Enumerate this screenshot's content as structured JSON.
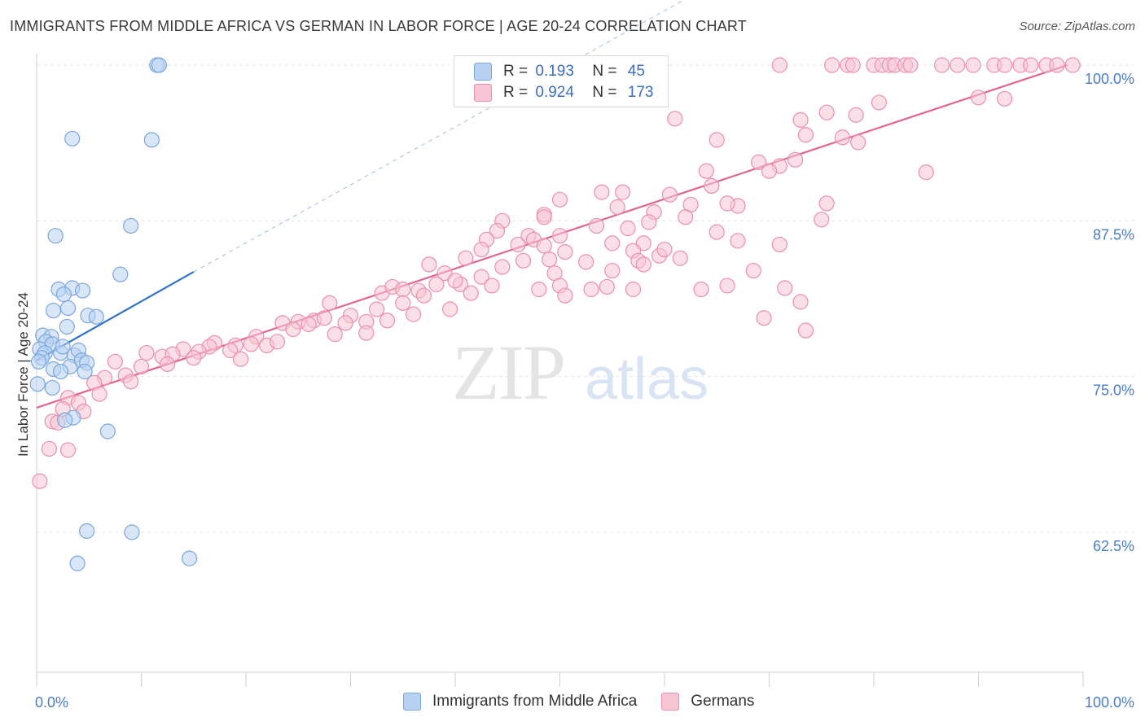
{
  "title": "IMMIGRANTS FROM MIDDLE AFRICA VS GERMAN IN LABOR FORCE | AGE 20-24 CORRELATION CHART",
  "source": "Source: ZipAtlas.com",
  "watermark": {
    "zip": "ZIP",
    "atlas": "atlas"
  },
  "legend": {
    "rows": [
      {
        "r_label": "R =",
        "r_value": "0.193",
        "n_label": "N =",
        "n_value": "45"
      },
      {
        "r_label": "R =",
        "r_value": "0.924",
        "n_label": "N =",
        "n_value": "173"
      }
    ]
  },
  "bottom_legend": [
    "Immigrants from Middle Africa",
    "Germans"
  ],
  "colors": {
    "blue_fill": "#b8d1f2",
    "blue_stroke": "#7aa6de",
    "blue_line": "#2f72c9",
    "pink_fill": "#f7c5d4",
    "pink_stroke": "#ea8fad",
    "pink_line": "#e0668f",
    "axis_label": "#4a7cc9",
    "grid": "#e3e3e3"
  },
  "chart_data": {
    "type": "scatter",
    "title": "IMMIGRANTS FROM MIDDLE AFRICA VS GERMAN IN LABOR FORCE | AGE 20-24 CORRELATION CHART",
    "xlabel": "",
    "ylabel": "In Labor Force | Age 20-24",
    "xlim": [
      0,
      100
    ],
    "ylim": [
      50,
      102
    ],
    "x_tick_labels": [
      "0.0%",
      "100.0%"
    ],
    "y_ticks": [
      62.5,
      75.0,
      87.5,
      100.0
    ],
    "y_tick_labels": [
      "62.5%",
      "75.0%",
      "87.5%",
      "100.0%"
    ],
    "grid": true,
    "series": [
      {
        "name": "Immigrants from Middle Africa",
        "color": "#7aa6de",
        "trend": {
          "x": [
            0,
            15
          ],
          "y": [
            76.3,
            83.4
          ],
          "dashed_to": [
            100,
            123
          ]
        },
        "points": [
          [
            11.5,
            100
          ],
          [
            11.7,
            100
          ],
          [
            3.4,
            94.1
          ],
          [
            11,
            94
          ],
          [
            1.8,
            86.3
          ],
          [
            9.0,
            87.1
          ],
          [
            8.0,
            83.2
          ],
          [
            2.1,
            82.0
          ],
          [
            3.4,
            82.1
          ],
          [
            4.4,
            81.9
          ],
          [
            2.6,
            81.6
          ],
          [
            1.6,
            80.3
          ],
          [
            3.0,
            80.5
          ],
          [
            4.9,
            79.9
          ],
          [
            5.7,
            79.8
          ],
          [
            2.9,
            79.0
          ],
          [
            0.6,
            78.3
          ],
          [
            1.4,
            78.2
          ],
          [
            0.9,
            77.8
          ],
          [
            1.5,
            77.6
          ],
          [
            0.3,
            77.2
          ],
          [
            0.8,
            76.9
          ],
          [
            2.3,
            76.9
          ],
          [
            3.6,
            76.7
          ],
          [
            4.0,
            77.1
          ],
          [
            2.5,
            77.4
          ],
          [
            0.5,
            76.5
          ],
          [
            0.2,
            76.2
          ],
          [
            3.2,
            75.8
          ],
          [
            4.3,
            76.3
          ],
          [
            4.8,
            76.1
          ],
          [
            1.6,
            75.6
          ],
          [
            2.3,
            75.4
          ],
          [
            4.6,
            75.4
          ],
          [
            0.1,
            74.4
          ],
          [
            1.5,
            74.1
          ],
          [
            3.5,
            71.7
          ],
          [
            2.7,
            71.5
          ],
          [
            6.8,
            70.6
          ],
          [
            4.8,
            62.6
          ],
          [
            9.1,
            62.5
          ],
          [
            3.9,
            60.0
          ],
          [
            14.6,
            60.4
          ]
        ]
      },
      {
        "name": "Germans",
        "color": "#ea8fad",
        "trend": {
          "x": [
            0,
            98.5
          ],
          "y": [
            72.5,
            100
          ]
        },
        "points": [
          [
            71,
            100
          ],
          [
            76,
            100
          ],
          [
            77.5,
            100
          ],
          [
            78,
            100
          ],
          [
            80,
            100
          ],
          [
            80.8,
            100
          ],
          [
            81.5,
            100
          ],
          [
            82,
            100
          ],
          [
            83,
            100
          ],
          [
            83.5,
            100
          ],
          [
            86.5,
            100
          ],
          [
            88,
            100
          ],
          [
            89.5,
            100
          ],
          [
            91.5,
            100
          ],
          [
            92.5,
            100
          ],
          [
            94,
            100
          ],
          [
            95,
            100
          ],
          [
            96.5,
            100
          ],
          [
            97.5,
            100
          ],
          [
            99,
            100
          ],
          [
            90,
            97.4
          ],
          [
            92.5,
            97.3
          ],
          [
            80.5,
            97.0
          ],
          [
            75.5,
            96.2
          ],
          [
            78.3,
            96.0
          ],
          [
            73,
            95.6
          ],
          [
            61,
            95.7
          ],
          [
            73.5,
            94.4
          ],
          [
            77,
            94.2
          ],
          [
            78.5,
            93.8
          ],
          [
            65,
            94.0
          ],
          [
            69,
            92.2
          ],
          [
            71,
            91.9
          ],
          [
            72.5,
            92.4
          ],
          [
            70,
            91.5
          ],
          [
            85,
            91.4
          ],
          [
            64,
            91.5
          ],
          [
            64.5,
            90.3
          ],
          [
            60.5,
            89.6
          ],
          [
            56,
            89.8
          ],
          [
            54,
            89.8
          ],
          [
            50,
            89.2
          ],
          [
            55.5,
            88.6
          ],
          [
            62.5,
            88.8
          ],
          [
            75.5,
            88.9
          ],
          [
            67,
            88.7
          ],
          [
            59,
            88.2
          ],
          [
            62,
            87.8
          ],
          [
            48.5,
            88.0
          ],
          [
            48.5,
            87.8
          ],
          [
            75,
            87.6
          ],
          [
            53.5,
            87.1
          ],
          [
            56.5,
            86.9
          ],
          [
            58.5,
            87.4
          ],
          [
            44.5,
            87.5
          ],
          [
            50,
            86.3
          ],
          [
            65,
            86.6
          ],
          [
            55,
            85.7
          ],
          [
            58,
            85.7
          ],
          [
            44,
            86.7
          ],
          [
            47,
            86.3
          ],
          [
            43,
            86.0
          ],
          [
            46,
            85.6
          ],
          [
            47.5,
            86.0
          ],
          [
            48.5,
            85.5
          ],
          [
            50.5,
            85.0
          ],
          [
            57,
            85.1
          ],
          [
            59.5,
            84.7
          ],
          [
            71,
            85.6
          ],
          [
            49,
            84.4
          ],
          [
            42.5,
            85.2
          ],
          [
            46.5,
            84.3
          ],
          [
            52.5,
            84.2
          ],
          [
            57.5,
            84.3
          ],
          [
            61.5,
            84.5
          ],
          [
            41,
            84.5
          ],
          [
            44.5,
            83.8
          ],
          [
            55,
            83.5
          ],
          [
            49.5,
            83.3
          ],
          [
            37.5,
            84.0
          ],
          [
            39,
            83.3
          ],
          [
            40.5,
            82.4
          ],
          [
            42.5,
            83.0
          ],
          [
            43.5,
            82.3
          ],
          [
            33,
            81.7
          ],
          [
            34,
            82.2
          ],
          [
            35,
            82.0
          ],
          [
            36.5,
            81.9
          ],
          [
            37,
            81.5
          ],
          [
            38.2,
            82.4
          ],
          [
            40,
            82.7
          ],
          [
            48,
            82.0
          ],
          [
            50,
            82.3
          ],
          [
            53,
            82.0
          ],
          [
            54.5,
            82.2
          ],
          [
            57,
            82.0
          ],
          [
            63.5,
            82.0
          ],
          [
            66,
            82.3
          ],
          [
            50.5,
            81.5
          ],
          [
            41.5,
            81.7
          ],
          [
            28,
            80.9
          ],
          [
            32.5,
            80.4
          ],
          [
            35,
            80.9
          ],
          [
            39.5,
            80.4
          ],
          [
            30,
            79.9
          ],
          [
            33.5,
            79.5
          ],
          [
            36,
            80.0
          ],
          [
            26.5,
            79.5
          ],
          [
            27.5,
            79.7
          ],
          [
            29.5,
            79.3
          ],
          [
            31.5,
            79.4
          ],
          [
            25,
            79.4
          ],
          [
            26,
            79.2
          ],
          [
            23.5,
            79.3
          ],
          [
            24.5,
            78.8
          ],
          [
            31.5,
            78.5
          ],
          [
            28.5,
            78.4
          ],
          [
            69.5,
            79.7
          ],
          [
            73.5,
            78.7
          ],
          [
            21,
            78.2
          ],
          [
            17,
            77.7
          ],
          [
            16.5,
            77.4
          ],
          [
            20.5,
            77.6
          ],
          [
            19,
            77.5
          ],
          [
            22,
            77.5
          ],
          [
            23,
            77.8
          ],
          [
            18.5,
            77.1
          ],
          [
            14,
            77.2
          ],
          [
            15.5,
            77.0
          ],
          [
            12,
            76.6
          ],
          [
            13,
            76.8
          ],
          [
            10.5,
            76.9
          ],
          [
            19.5,
            76.4
          ],
          [
            15,
            76.5
          ],
          [
            12.5,
            76.0
          ],
          [
            7.5,
            76.2
          ],
          [
            10,
            75.8
          ],
          [
            8.5,
            75.1
          ],
          [
            6.5,
            74.9
          ],
          [
            9,
            74.6
          ],
          [
            5.5,
            74.5
          ],
          [
            6,
            73.6
          ],
          [
            3,
            73.3
          ],
          [
            4,
            72.9
          ],
          [
            2.5,
            72.4
          ],
          [
            4.5,
            72.2
          ],
          [
            1.5,
            71.4
          ],
          [
            2,
            71.3
          ],
          [
            3,
            69.1
          ],
          [
            1.2,
            69.2
          ],
          [
            0.3,
            66.6
          ],
          [
            66,
            88.9
          ],
          [
            67,
            85.9
          ],
          [
            73,
            81.0
          ],
          [
            68.5,
            83.5
          ],
          [
            58,
            84.0
          ],
          [
            60,
            85.2
          ],
          [
            71.5,
            82.1
          ]
        ]
      }
    ]
  }
}
